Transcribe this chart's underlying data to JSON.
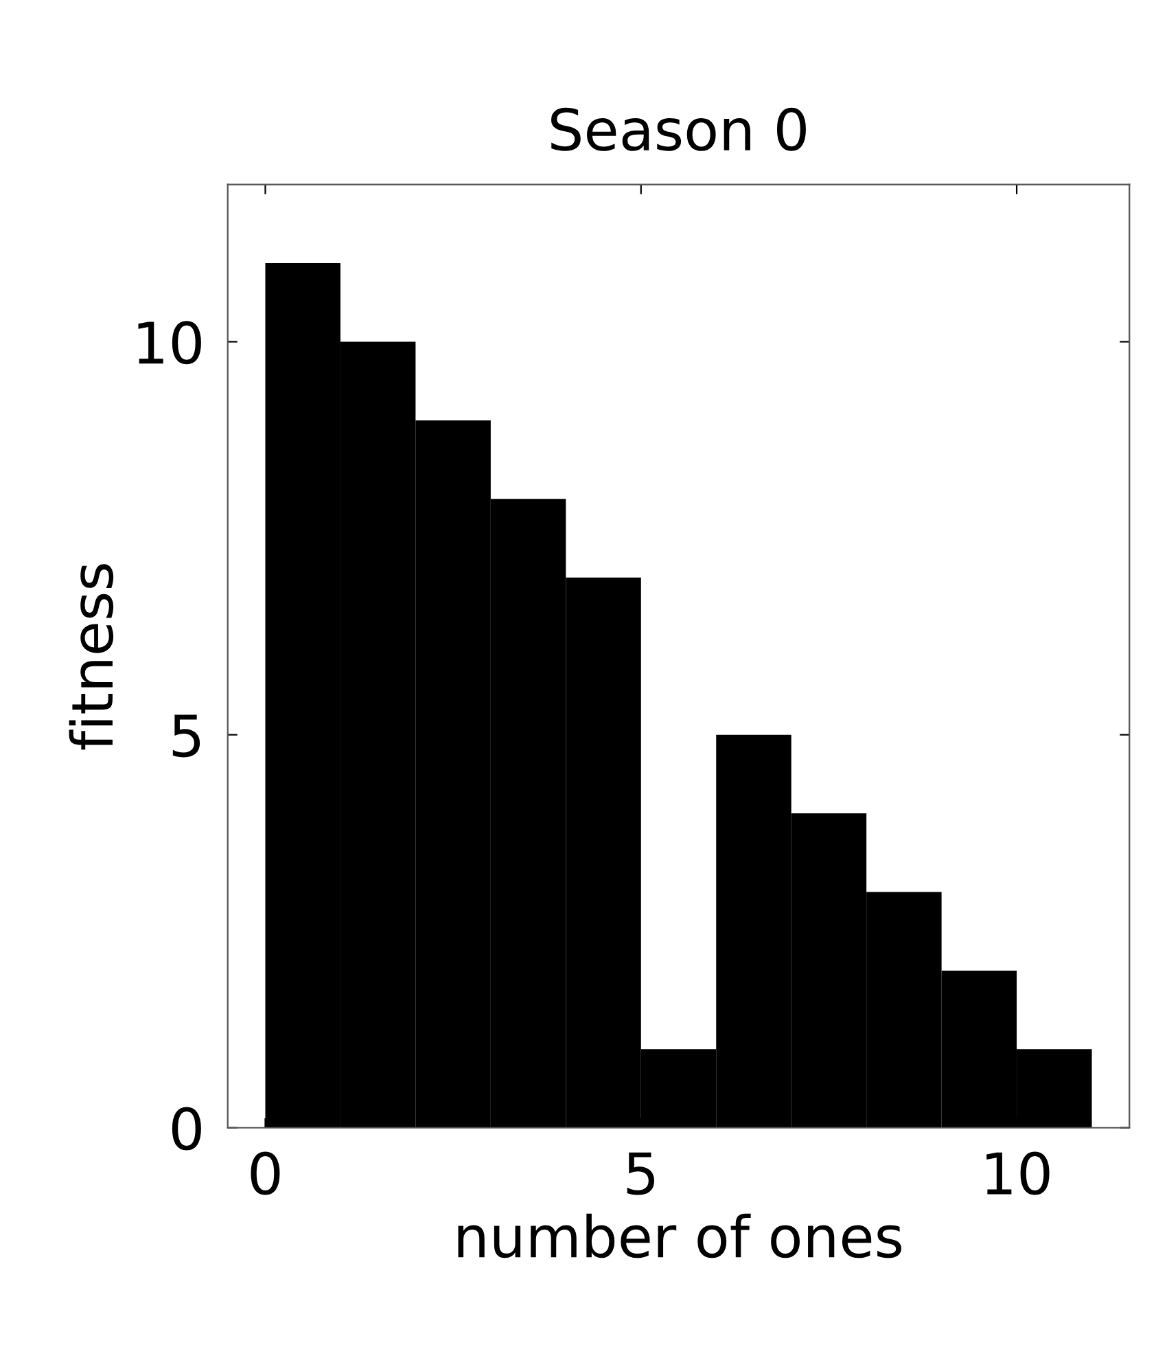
{
  "chart_data": {
    "type": "histogram",
    "title": "Season 0",
    "xlabel": "number of ones",
    "ylabel": "fitness",
    "bins": [
      0,
      1,
      2,
      3,
      4,
      5,
      6,
      7,
      8,
      9,
      10,
      11
    ],
    "values": [
      11,
      10,
      9,
      8,
      7,
      1,
      5,
      4,
      3,
      2,
      1
    ],
    "color": "#000000",
    "xlim": [
      -0.5,
      11.5
    ],
    "ylim": [
      0,
      12
    ],
    "xticks": [
      0,
      5,
      10
    ],
    "yticks": [
      0,
      5,
      10
    ],
    "grid": false
  }
}
